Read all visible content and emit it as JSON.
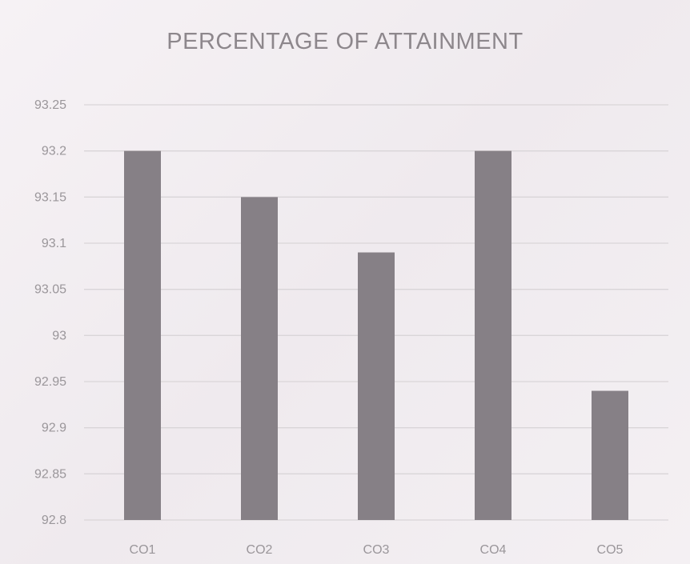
{
  "chart_data": {
    "type": "bar",
    "title": "PERCENTAGE OF ATTAINMENT",
    "categories": [
      "CO1",
      "CO2",
      "CO3",
      "CO4",
      "CO5"
    ],
    "values": [
      93.2,
      93.15,
      93.09,
      93.2,
      92.94
    ],
    "ylim": [
      92.8,
      93.25
    ],
    "yticks": [
      "92.8",
      "92.85",
      "92.9",
      "92.95",
      "93",
      "93.05",
      "93.1",
      "93.15",
      "93.2",
      "93.25"
    ],
    "grid": true,
    "legend": "none",
    "bar_color": "#868086"
  }
}
